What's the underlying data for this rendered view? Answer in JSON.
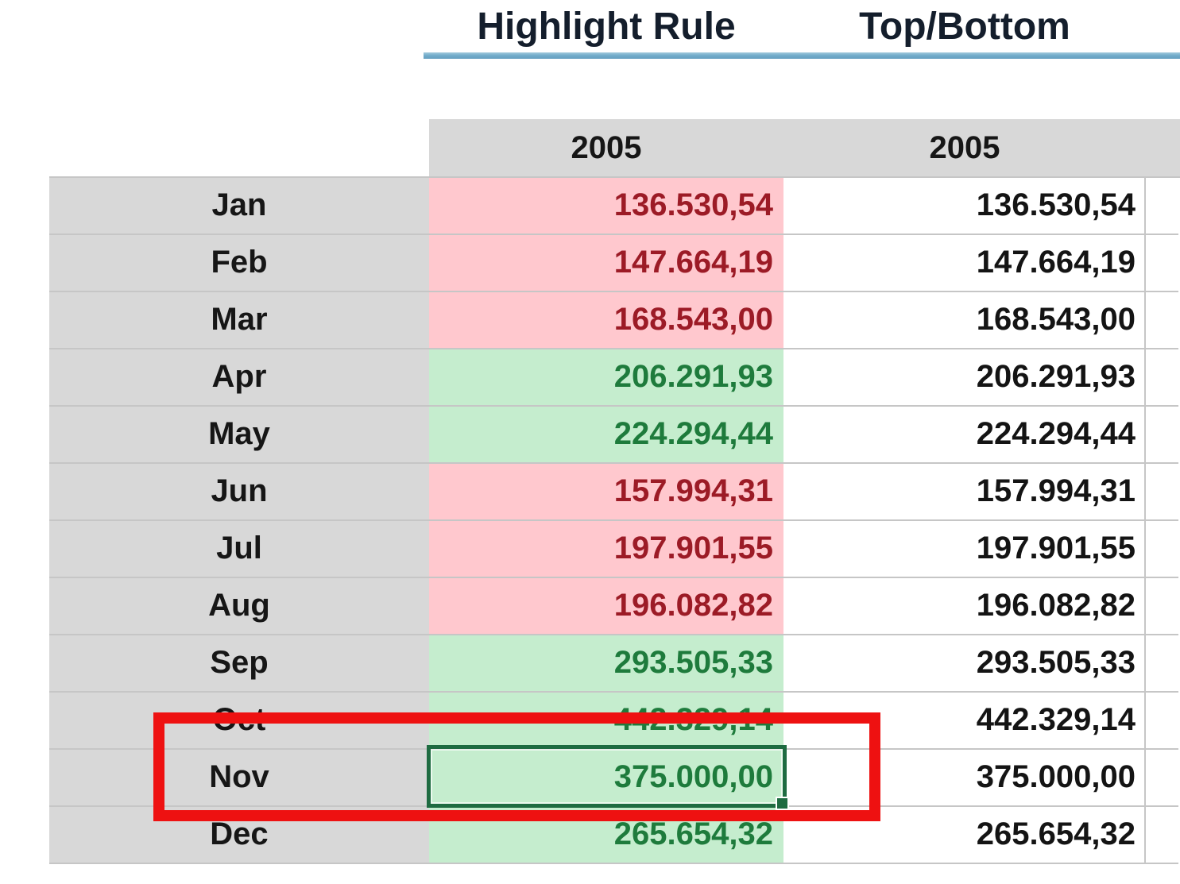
{
  "titles": [
    {
      "label": "Highlight Rule"
    },
    {
      "label": "Top/Bottom"
    }
  ],
  "headers": {
    "highlight_year": "2005",
    "topbottom_year": "2005"
  },
  "rows": [
    {
      "month": "Jan",
      "highlight_value": "136.530,54",
      "topbottom_value": "136.530,54",
      "state": "low"
    },
    {
      "month": "Feb",
      "highlight_value": "147.664,19",
      "topbottom_value": "147.664,19",
      "state": "low"
    },
    {
      "month": "Mar",
      "highlight_value": "168.543,00",
      "topbottom_value": "168.543,00",
      "state": "low"
    },
    {
      "month": "Apr",
      "highlight_value": "206.291,93",
      "topbottom_value": "206.291,93",
      "state": "high"
    },
    {
      "month": "May",
      "highlight_value": "224.294,44",
      "topbottom_value": "224.294,44",
      "state": "high"
    },
    {
      "month": "Jun",
      "highlight_value": "157.994,31",
      "topbottom_value": "157.994,31",
      "state": "low"
    },
    {
      "month": "Jul",
      "highlight_value": "197.901,55",
      "topbottom_value": "197.901,55",
      "state": "low"
    },
    {
      "month": "Aug",
      "highlight_value": "196.082,82",
      "topbottom_value": "196.082,82",
      "state": "low"
    },
    {
      "month": "Sep",
      "highlight_value": "293.505,33",
      "topbottom_value": "293.505,33",
      "state": "high"
    },
    {
      "month": "Oct",
      "highlight_value": "442.329,14",
      "topbottom_value": "442.329,14",
      "state": "high"
    },
    {
      "month": "Nov",
      "highlight_value": "375.000,00",
      "topbottom_value": "375.000,00",
      "state": "high"
    },
    {
      "month": "Dec",
      "highlight_value": "265.654,32",
      "topbottom_value": "265.654,32",
      "state": "high"
    }
  ],
  "selection": {
    "selected_month": "Nov",
    "selected_column": "Highlight Rule 2005",
    "selected_value": "375.000,00"
  },
  "colors": {
    "pink_fill": "#FFC8CE",
    "red_text": "#9C1B26",
    "green_fill": "#C5EDCE",
    "green_text": "#1E7B3C",
    "header_gray": "#D8D8D8",
    "underline_blue": "#74AECB",
    "selection_green": "#1E6B41",
    "annotation_red": "#EE1111"
  }
}
